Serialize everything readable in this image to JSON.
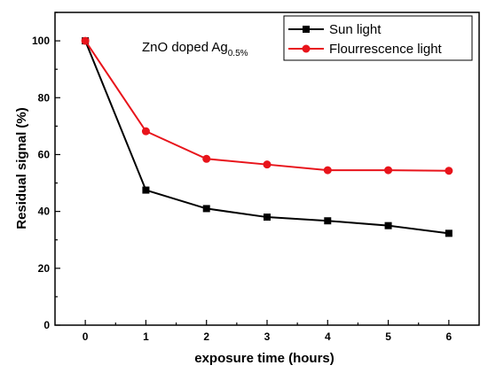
{
  "chart_data": {
    "type": "line",
    "xlabel": "exposure time (hours)",
    "ylabel": "Residual signal (%)",
    "xlim": [
      -0.5,
      6.5
    ],
    "ylim": [
      0,
      110
    ],
    "x_ticks": [
      0,
      1,
      2,
      3,
      4,
      5,
      6
    ],
    "y_ticks": [
      0,
      20,
      40,
      60,
      80,
      100
    ],
    "grid": false,
    "legend_position": "top-right",
    "annotation": {
      "main": "ZnO doped Ag",
      "subscript": "0.5%"
    },
    "x": [
      0,
      1,
      2,
      3,
      4,
      5,
      6
    ],
    "series": [
      {
        "name": "Sun light",
        "color": "#000000",
        "marker": "square",
        "values": [
          100,
          47.5,
          41,
          38,
          36.7,
          35,
          32.3
        ]
      },
      {
        "name": "Flourrescence light",
        "color": "#e8141b",
        "marker": "circle",
        "values": [
          100,
          68.2,
          58.5,
          56.5,
          54.5,
          54.5,
          54.3
        ]
      }
    ]
  }
}
